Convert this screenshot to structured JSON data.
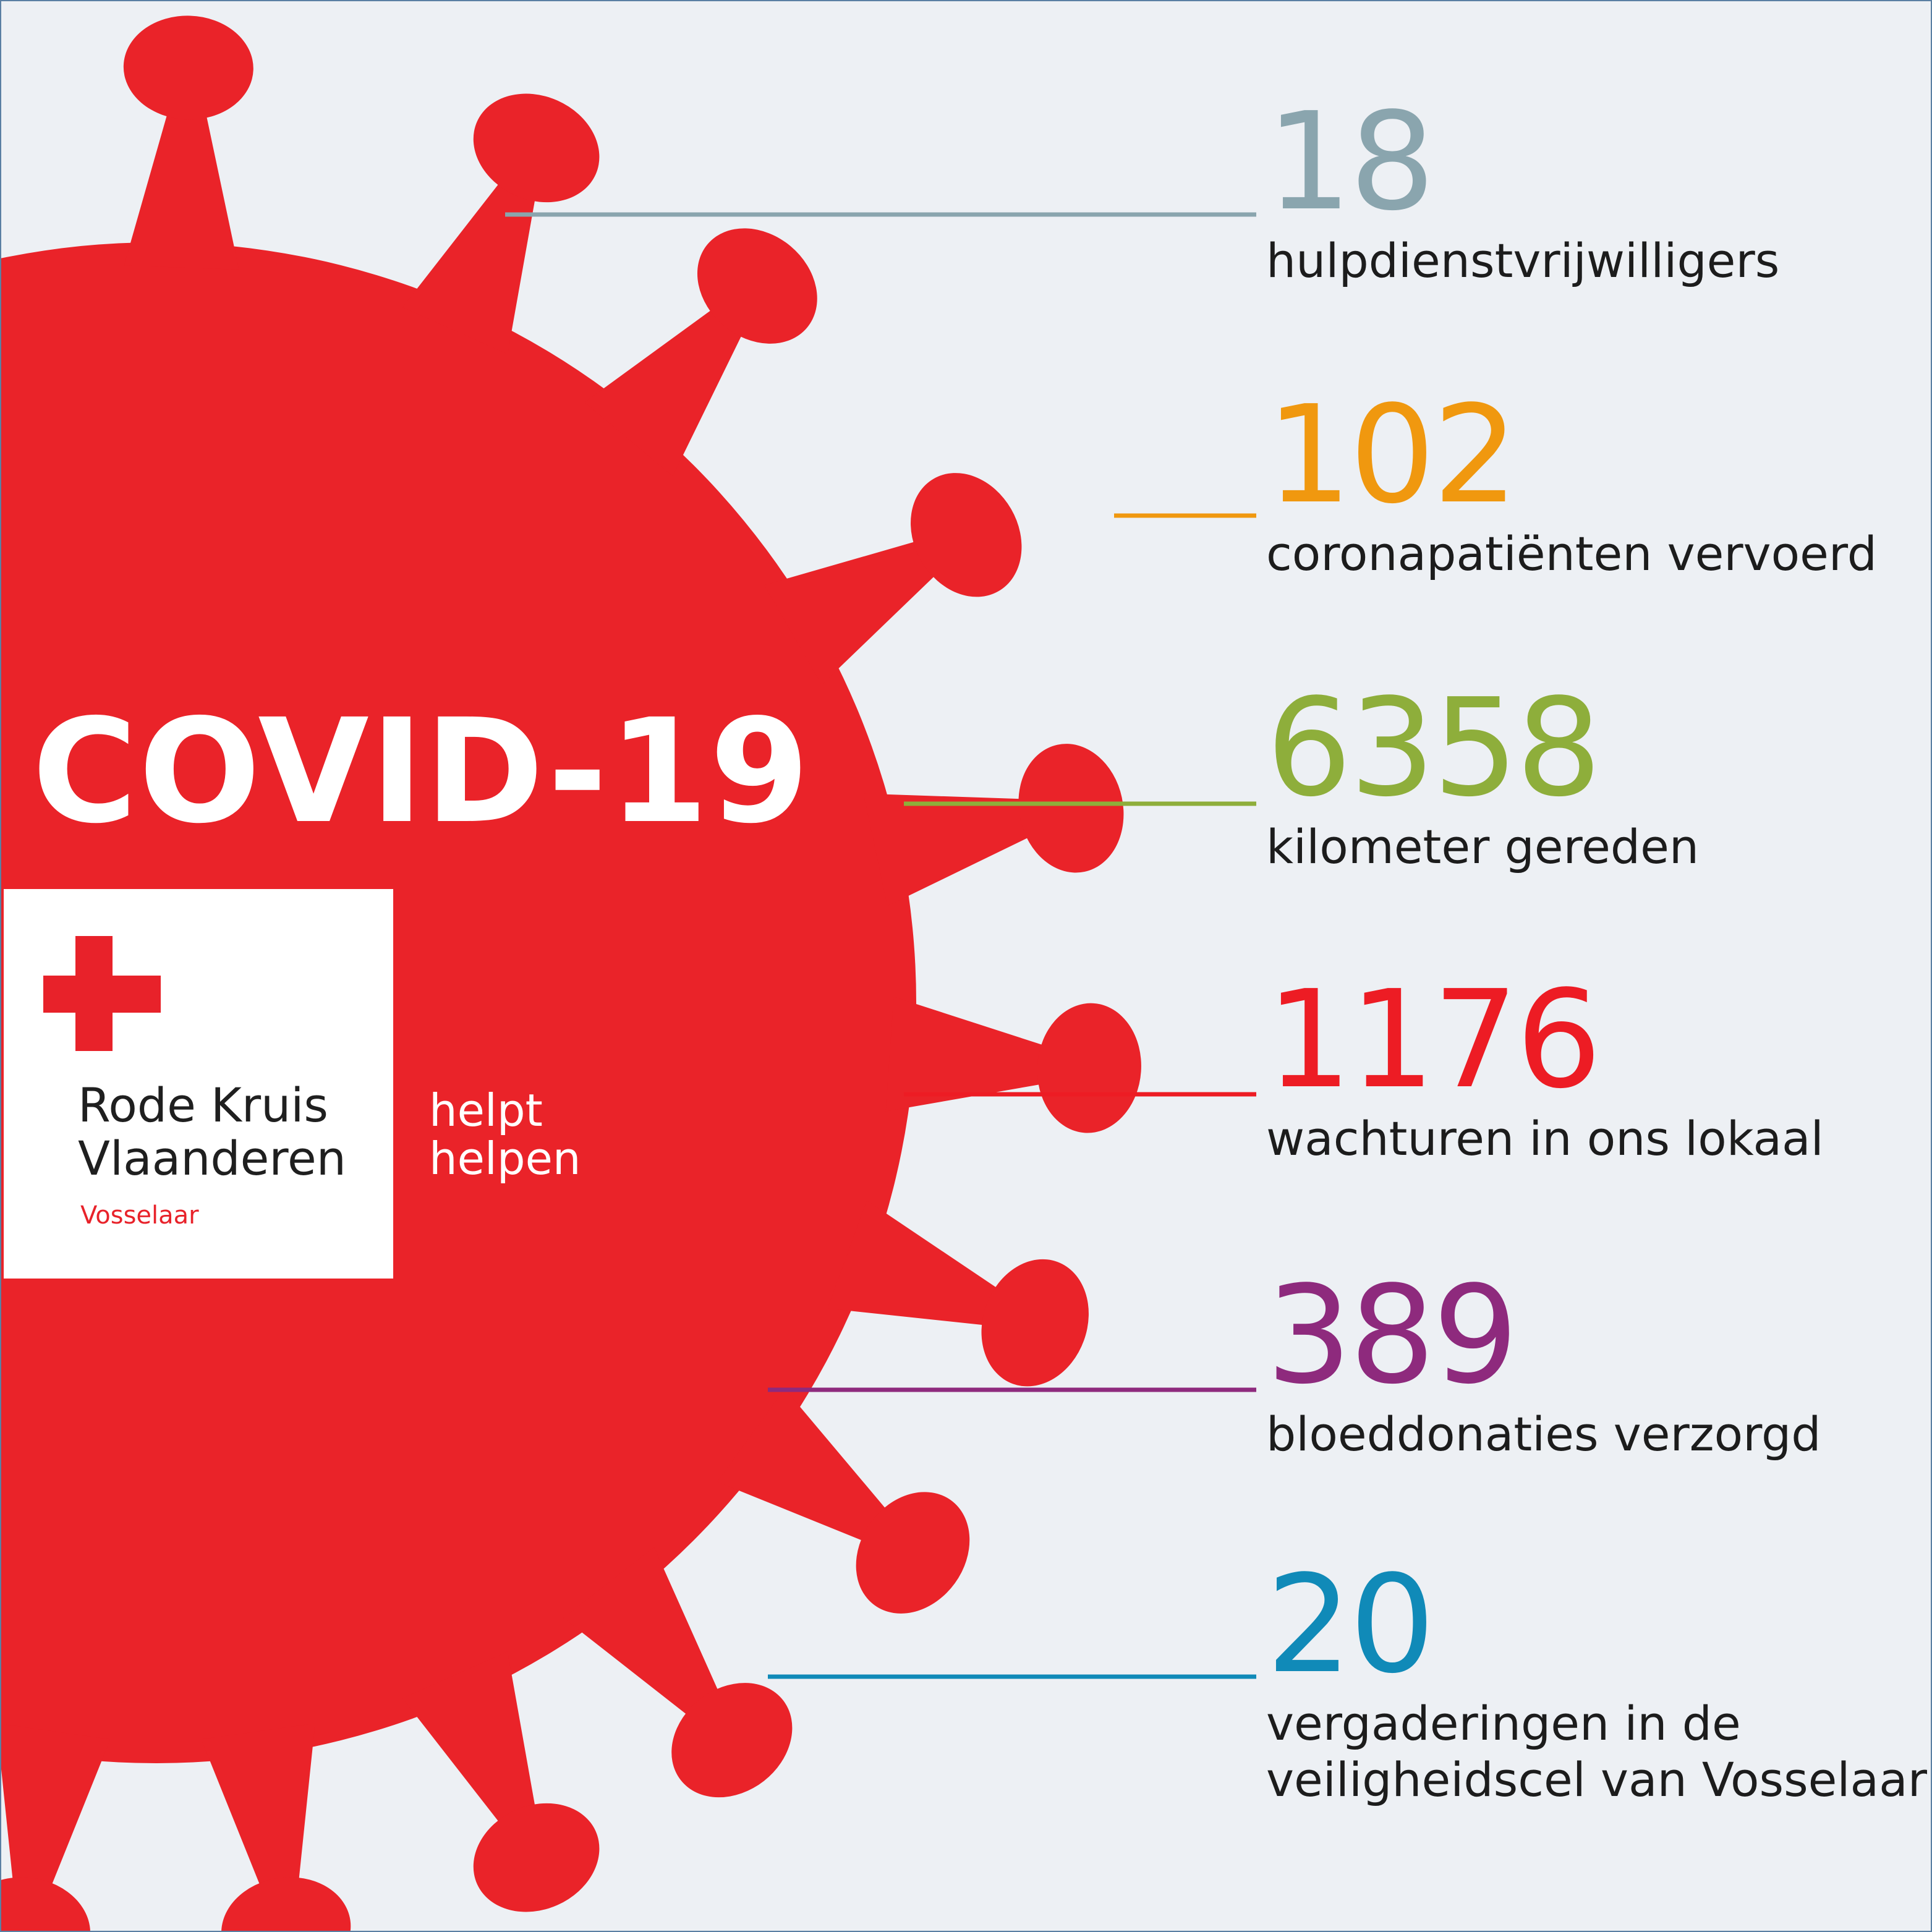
{
  "title": "COVID-19",
  "logo": {
    "org_line1": "Rode Kruis",
    "org_line2": "Vlaanderen",
    "location": "Vosselaar",
    "slogan_line1": "helpt",
    "slogan_line2": "helpen"
  },
  "colors": {
    "virus_red": "#ea2329",
    "background": "#edf0f4"
  },
  "stats": [
    {
      "value": "18",
      "label": "hulpdienstvrijwilligers",
      "color": "#8aa5ae"
    },
    {
      "value": "102",
      "label": "coronapatiënten vervoerd",
      "color": "#f0980f"
    },
    {
      "value": "6358",
      "label": "kilometer gereden",
      "color": "#8eae3b"
    },
    {
      "value": "1176",
      "label": "wachturen in ons lokaal",
      "color": "#ed1c24"
    },
    {
      "value": "389",
      "label": "bloeddonaties verzorgd",
      "color": "#8e2a7d"
    },
    {
      "value": "20",
      "label": "vergaderingen in de",
      "label2": "veiligheidscel van Vosselaar",
      "color": "#108ab8"
    }
  ]
}
